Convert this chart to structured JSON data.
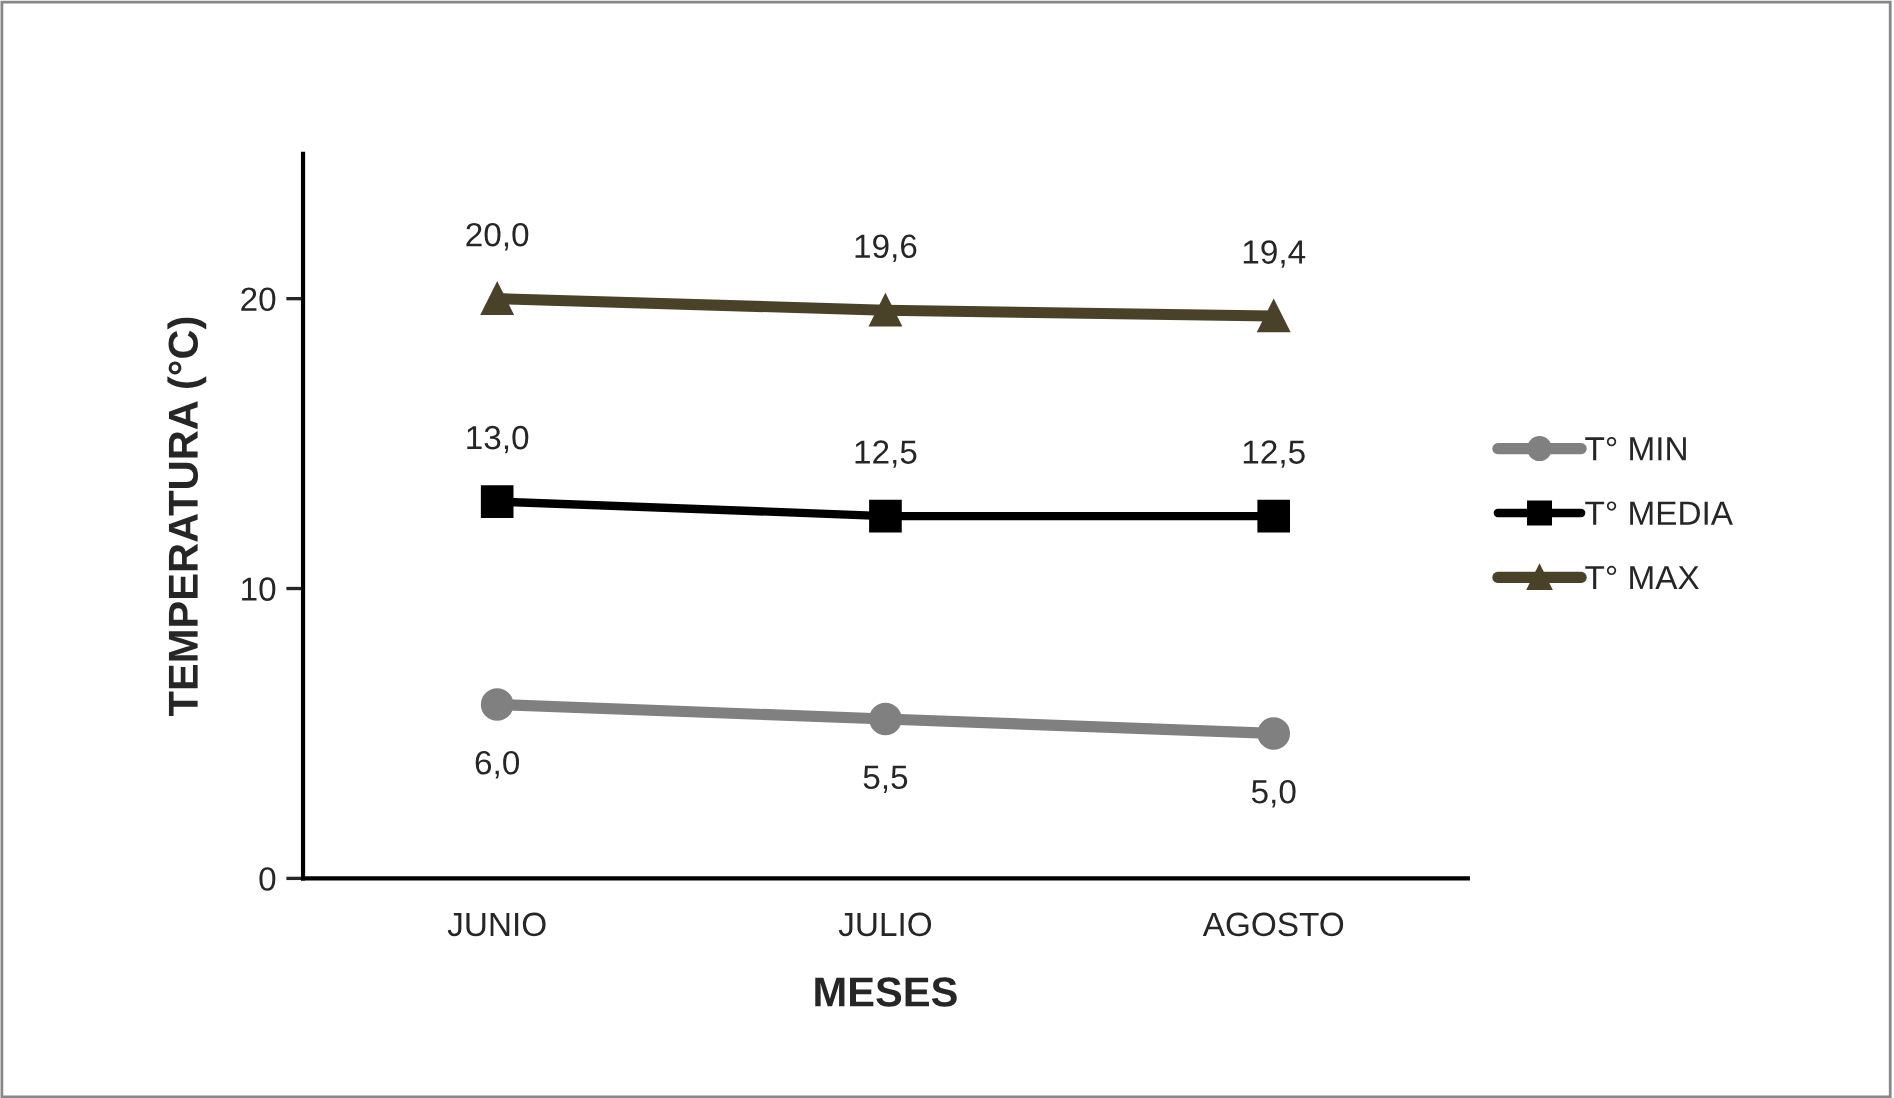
{
  "chart_data": {
    "type": "line",
    "xlabel": "MESES",
    "ylabel": "TEMPERATURA (°C)",
    "categories": [
      "JUNIO",
      "JULIO",
      "AGOSTO"
    ],
    "series": [
      {
        "name": "T° MIN",
        "color": "#808080",
        "marker": "circle",
        "values": [
          6.0,
          5.5,
          5.0
        ],
        "value_labels": [
          "6,0",
          "5,5",
          "5,0"
        ]
      },
      {
        "name": "T° MEDIA",
        "color": "#000000",
        "marker": "square",
        "values": [
          13.0,
          12.5,
          12.5
        ],
        "value_labels": [
          "13,0",
          "12,5",
          "12,5"
        ]
      },
      {
        "name": "T° MAX",
        "color": "#4a4228",
        "marker": "triangle",
        "values": [
          20.0,
          19.6,
          19.4
        ],
        "value_labels": [
          "20,0",
          "19,6",
          "19,4"
        ]
      }
    ],
    "ylim": [
      0,
      25
    ],
    "yticks": [
      0,
      10,
      20
    ],
    "grid": false,
    "legend": "right"
  }
}
